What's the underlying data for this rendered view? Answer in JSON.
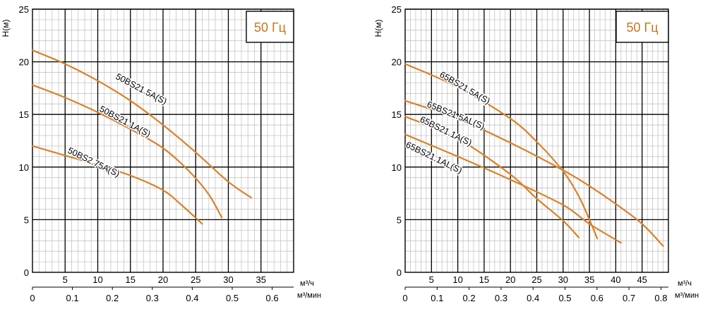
{
  "colors": {
    "curve": "#d9822b",
    "freq_text": "#c8741e",
    "grid_major": "#000000",
    "grid_minor": "#bdbdbd"
  },
  "chart_data": [
    {
      "type": "line",
      "frequency_label": "50 Гц",
      "ylabel": "H(м)",
      "xlabel_top": "м³/ч",
      "xlabel_bottom": "м³/мин",
      "ylim": [
        0,
        25
      ],
      "xlim_m3h": [
        0,
        40
      ],
      "y_ticks": [
        "0",
        "5",
        "10",
        "15",
        "20",
        "25"
      ],
      "x_ticks_top": [
        "5",
        "10",
        "15",
        "20",
        "25",
        "30",
        "35"
      ],
      "x_ticks_bottom": [
        "0",
        "0.1",
        "0.2",
        "0.3",
        "0.4",
        "0.5",
        "0.6"
      ],
      "grid": true,
      "series": [
        {
          "name": "50BS21.5A(S)",
          "points": [
            [
              0,
              21.1
            ],
            [
              5,
              19.8
            ],
            [
              10,
              18.2
            ],
            [
              15,
              16.3
            ],
            [
              20,
              14.0
            ],
            [
              25,
              11.4
            ],
            [
              30,
              8.6
            ],
            [
              33.5,
              7.1
            ]
          ]
        },
        {
          "name": "50BS21.1A(S)",
          "points": [
            [
              0,
              17.8
            ],
            [
              5,
              16.6
            ],
            [
              10,
              15.2
            ],
            [
              15,
              13.6
            ],
            [
              20,
              11.8
            ],
            [
              24,
              9.6
            ],
            [
              27,
              7.4
            ],
            [
              29,
              5.2
            ]
          ]
        },
        {
          "name": "50BS2.75A(S)",
          "points": [
            [
              0,
              12.0
            ],
            [
              5,
              11.1
            ],
            [
              10,
              10.2
            ],
            [
              15,
              9.2
            ],
            [
              20,
              7.8
            ],
            [
              23,
              6.3
            ],
            [
              26,
              4.6
            ]
          ]
        }
      ]
    },
    {
      "type": "line",
      "frequency_label": "50 Гц",
      "ylabel": "H(м)",
      "xlabel_top": "м³/ч",
      "xlabel_bottom": "м³/мин",
      "ylim": [
        0,
        25
      ],
      "xlim_m3h": [
        0,
        50
      ],
      "y_ticks": [
        "0",
        "5",
        "10",
        "15",
        "20",
        "25"
      ],
      "x_ticks_top": [
        "5",
        "10",
        "15",
        "20",
        "25",
        "30",
        "35",
        "40",
        "45"
      ],
      "x_ticks_bottom": [
        "0",
        "0.1",
        "0.2",
        "0.3",
        "0.4",
        "0.5",
        "0.6",
        "0.7",
        "0.8"
      ],
      "grid": true,
      "series": [
        {
          "name": "65BS21.5A(S)",
          "points": [
            [
              0,
              19.8
            ],
            [
              10,
              17.6
            ],
            [
              20,
              14.6
            ],
            [
              25,
              12.4
            ],
            [
              30,
              9.6
            ],
            [
              33,
              7.2
            ],
            [
              35,
              5.0
            ],
            [
              36.5,
              3.2
            ]
          ]
        },
        {
          "name": "65BS21.5AL(S)",
          "points": [
            [
              0,
              16.3
            ],
            [
              10,
              14.6
            ],
            [
              20,
              12.3
            ],
            [
              30,
              9.7
            ],
            [
              35,
              8.2
            ],
            [
              40,
              6.5
            ],
            [
              45,
              4.6
            ],
            [
              49,
              2.5
            ]
          ]
        },
        {
          "name": "65BS21.1A(S)",
          "points": [
            [
              0,
              14.8
            ],
            [
              10,
              12.7
            ],
            [
              20,
              9.3
            ],
            [
              25,
              7.0
            ],
            [
              30,
              4.9
            ],
            [
              33,
              3.3
            ]
          ]
        },
        {
          "name": "65BS21.1AL(S)",
          "points": [
            [
              0,
              13.1
            ],
            [
              10,
              11.0
            ],
            [
              20,
              8.8
            ],
            [
              30,
              6.4
            ],
            [
              35,
              4.6
            ],
            [
              41,
              2.8
            ]
          ]
        }
      ]
    }
  ]
}
